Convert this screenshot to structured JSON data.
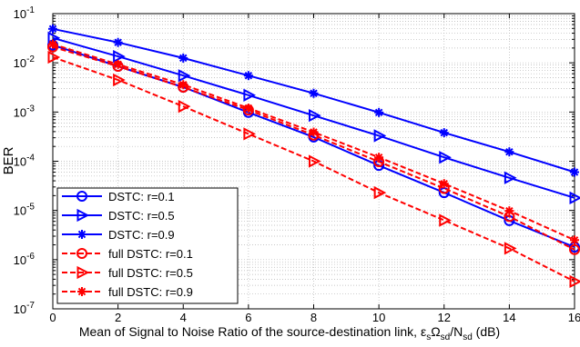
{
  "chart_data": {
    "type": "line",
    "ylabel": "BER",
    "xlabel_parts": {
      "main": "Mean of Signal to Noise Ratio of the source-destination link, ",
      "eps": "ε",
      "eps_sub": "s",
      "omega": "Ω",
      "omega_sub": "sd",
      "slash": "/N",
      "n_sub": "sd",
      "unit": " (dB)"
    },
    "x": [
      0,
      2,
      4,
      6,
      8,
      10,
      12,
      14,
      16
    ],
    "xlim": [
      0,
      16
    ],
    "x_ticks": [
      0,
      2,
      4,
      6,
      8,
      10,
      12,
      14,
      16
    ],
    "y_scale": "log",
    "ylim": [
      1e-07,
      0.1
    ],
    "y_ticks": [
      {
        "base": "10",
        "exp": "-1",
        "value": 0.1
      },
      {
        "base": "10",
        "exp": "-2",
        "value": 0.01
      },
      {
        "base": "10",
        "exp": "-3",
        "value": 0.001
      },
      {
        "base": "10",
        "exp": "-4",
        "value": 0.0001
      },
      {
        "base": "10",
        "exp": "-5",
        "value": 1e-05
      },
      {
        "base": "10",
        "exp": "-6",
        "value": 1e-06
      },
      {
        "base": "10",
        "exp": "-7",
        "value": 1e-07
      }
    ],
    "grid": true,
    "legend_position": "bottom-left",
    "series": [
      {
        "name": "DSTC: r=0.1",
        "color": "#0000ff",
        "dash": "solid",
        "marker": "circle",
        "values": [
          0.023,
          0.0085,
          0.0032,
          0.00098,
          0.00031,
          8.2e-05,
          2.3e-05,
          6.2e-06,
          1.8e-06
        ]
      },
      {
        "name": "DSTC: r=0.5",
        "color": "#0000ff",
        "dash": "solid",
        "marker": "triangle-right",
        "values": [
          0.032,
          0.0135,
          0.0055,
          0.0022,
          0.00085,
          0.00033,
          0.00012,
          4.6e-05,
          1.8e-05
        ]
      },
      {
        "name": "DSTC: r=0.9",
        "color": "#0000ff",
        "dash": "solid",
        "marker": "star",
        "values": [
          0.049,
          0.026,
          0.0125,
          0.0055,
          0.0024,
          0.00098,
          0.00038,
          0.000155,
          6e-05
        ]
      },
      {
        "name": "full DSTC: r=0.1",
        "color": "#ff0000",
        "dash": "dashed",
        "marker": "circle",
        "values": [
          0.021,
          0.0085,
          0.0032,
          0.0011,
          0.00034,
          9.8e-05,
          2.8e-05,
          7.5e-06,
          1.6e-06
        ]
      },
      {
        "name": "full DSTC: r=0.5",
        "color": "#ff0000",
        "dash": "dashed",
        "marker": "triangle-right",
        "values": [
          0.013,
          0.0045,
          0.0013,
          0.00036,
          0.0001,
          2.3e-05,
          6.3e-06,
          1.7e-06,
          3.6e-07
        ]
      },
      {
        "name": "full DSTC: r=0.9",
        "color": "#ff0000",
        "dash": "dashed",
        "marker": "star",
        "values": [
          0.024,
          0.0093,
          0.0036,
          0.0012,
          0.00039,
          0.00012,
          3.5e-05,
          9.8e-06,
          2.5e-06
        ]
      }
    ]
  }
}
